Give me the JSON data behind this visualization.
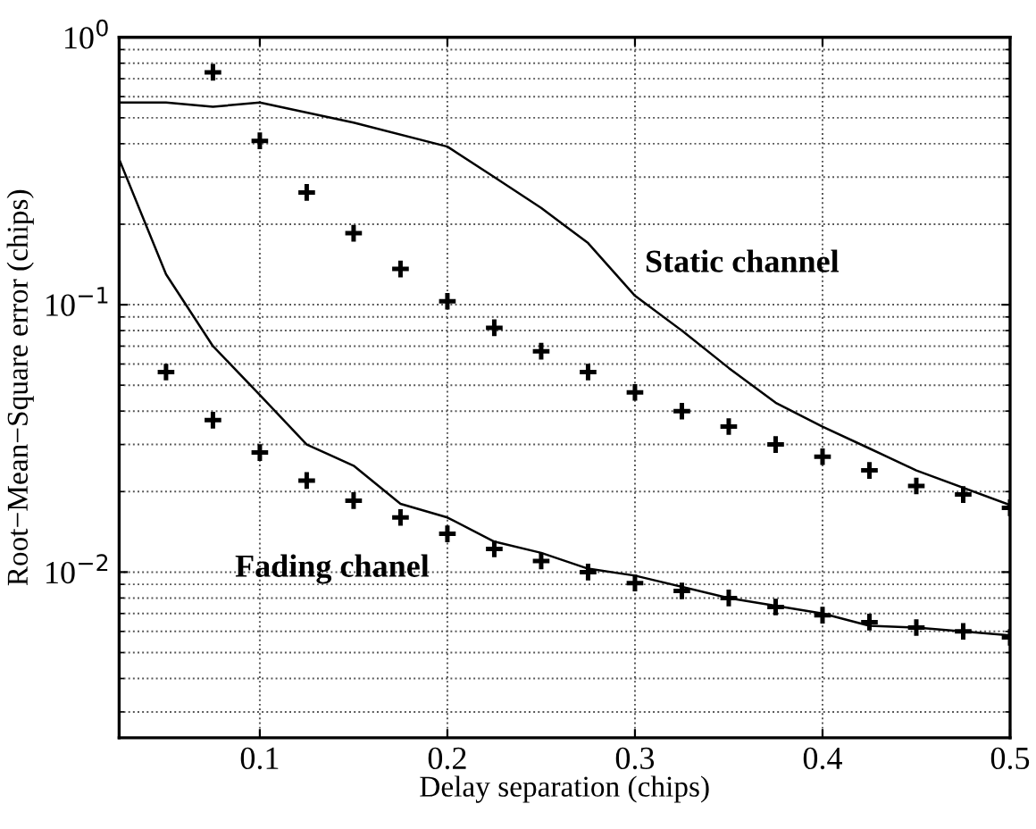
{
  "chart_data": {
    "type": "line",
    "xlabel": "Delay separation (chips)",
    "ylabel": "Root−Mean−Square error (chips)",
    "log": "y",
    "grid": true,
    "xlim": [
      0.025,
      0.5
    ],
    "xticks": [
      0.1,
      0.2,
      0.3,
      0.4,
      0.5
    ],
    "ylim": [
      0.0024,
      1
    ],
    "yticks": [
      {
        "value": 0.01,
        "label": "10$^{−2}$"
      },
      {
        "value": 0.1,
        "label": "10$^{−1}$"
      },
      {
        "value": 1,
        "label": "10$^{0}$"
      }
    ],
    "series": [
      {
        "color": "#000000",
        "marker": "none",
        "line_style": "solid",
        "x": [
          0.025,
          0.05,
          0.075,
          0.1,
          0.15,
          0.2,
          0.225,
          0.25,
          0.275,
          0.3,
          0.325,
          0.35,
          0.375,
          0.4,
          0.425,
          0.45,
          0.5
        ],
        "values": [
          0.57,
          0.57,
          0.55,
          0.57,
          0.48,
          0.39,
          0.3,
          0.23,
          0.17,
          0.108,
          0.08,
          0.058,
          0.043,
          0.035,
          0.029,
          0.024,
          0.0178
        ]
      },
      {
        "color": "#000000",
        "marker": "none",
        "line_style": "solid",
        "x": [
          0.025,
          0.05,
          0.075,
          0.1,
          0.125,
          0.15,
          0.175,
          0.2,
          0.225,
          0.25,
          0.275,
          0.3,
          0.35,
          0.4,
          0.425,
          0.45,
          0.5
        ],
        "values": [
          0.35,
          0.13,
          0.07,
          0.046,
          0.03,
          0.025,
          0.018,
          0.016,
          0.013,
          0.0118,
          0.0103,
          0.0097,
          0.008,
          0.007,
          0.0063,
          0.0062,
          0.0058
        ]
      },
      {
        "type": "scatter",
        "color": "#000000",
        "marker": "cross",
        "x": [
          0.075,
          0.1,
          0.125,
          0.15,
          0.175,
          0.2,
          0.225,
          0.25,
          0.275,
          0.3,
          0.325,
          0.35,
          0.375,
          0.4,
          0.425,
          0.45,
          0.475,
          0.5
        ],
        "values": [
          0.74,
          0.41,
          0.263,
          0.185,
          0.136,
          0.103,
          0.082,
          0.067,
          0.056,
          0.047,
          0.04,
          0.035,
          0.03,
          0.027,
          0.024,
          0.021,
          0.0195,
          0.0174
        ]
      },
      {
        "type": "scatter",
        "color": "#000000",
        "marker": "cross",
        "x": [
          0.05,
          0.075,
          0.1,
          0.125,
          0.15,
          0.175,
          0.2,
          0.225,
          0.25,
          0.275,
          0.3,
          0.325,
          0.35,
          0.375,
          0.4,
          0.425,
          0.45,
          0.475,
          0.5
        ],
        "values": [
          0.056,
          0.037,
          0.028,
          0.022,
          0.0185,
          0.016,
          0.0139,
          0.0122,
          0.011,
          0.01,
          0.0091,
          0.0085,
          0.008,
          0.0074,
          0.0069,
          0.0065,
          0.0062,
          0.006,
          0.0057
        ]
      }
    ],
    "annotations": [
      "Static channel",
      "Fading chanel"
    ]
  }
}
